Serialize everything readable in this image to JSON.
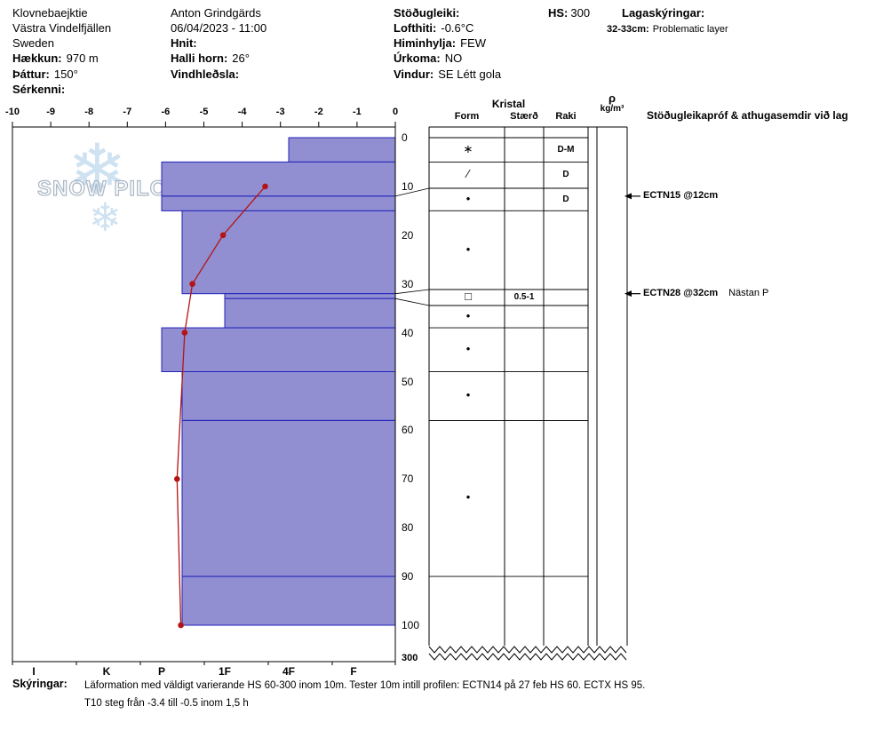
{
  "colors": {
    "layer_fill": "#918fd2",
    "layer_border": "#2222bb",
    "temp_line": "#b41414",
    "grid": "#000000"
  },
  "header": {
    "left": {
      "site_name": "Klovnebaejktie",
      "region": "Västra Vindelfjällen",
      "country": "Sweden",
      "elevation_label": "Hækkun:",
      "elevation_value": "970 m",
      "aspect_label": "Þáttur:",
      "aspect_value": "150°",
      "special_label": "Sérkenni:"
    },
    "middle": {
      "observer": "Anton Grindgärds",
      "datetime": "06/04/2023 - 11:00",
      "coords_label": "Hnit:",
      "slope_label": "Halli horn:",
      "slope_value": "26°",
      "windloading_label": "Vindhleðsla:"
    },
    "right": {
      "stability_label": "Stöðugleiki:",
      "airtemp_label": "Lofthiti:",
      "airtemp_value": "-0.6°C",
      "sky_label": "Himinhylja:",
      "sky_value": "FEW",
      "precip_label": "Úrkoma:",
      "precip_value": "NO",
      "wind_label": "Vindur:",
      "wind_value": "SE Létt gola"
    },
    "hs_label": "HS:",
    "hs_value": "300",
    "layer_notes_label": "Lagaskýringar:",
    "layer_note_depth": "32-33cm:",
    "layer_note_text": "Problematic layer"
  },
  "watermark": {
    "text": "SNOW PILOT",
    "snowflake": "❄"
  },
  "chart_data": {
    "type": "snow-profile",
    "temp_axis": {
      "unit": "°C",
      "min": -10,
      "max": 0,
      "ticks": [
        -10,
        -9,
        -8,
        -7,
        -6,
        -5,
        -4,
        -3,
        -2,
        -1,
        0
      ]
    },
    "depth_axis": {
      "unit": "cm",
      "ticks": [
        0,
        10,
        20,
        30,
        40,
        50,
        60,
        70,
        80,
        90,
        100
      ],
      "break_label": "300",
      "total_depth": 300
    },
    "hardness_axis": {
      "labels": [
        "I",
        "K",
        "P",
        "1F",
        "4F",
        "F"
      ]
    },
    "layers": [
      {
        "top_cm": 0,
        "bottom_cm": 5,
        "hardness": "4F"
      },
      {
        "top_cm": 5,
        "bottom_cm": 12,
        "hardness": "P"
      },
      {
        "top_cm": 12,
        "bottom_cm": 15,
        "hardness": "P"
      },
      {
        "top_cm": 15,
        "bottom_cm": 32,
        "hardness": "P-"
      },
      {
        "top_cm": 32,
        "bottom_cm": 33,
        "hardness": "1F"
      },
      {
        "top_cm": 33,
        "bottom_cm": 39,
        "hardness": "1F"
      },
      {
        "top_cm": 39,
        "bottom_cm": 48,
        "hardness": "P"
      },
      {
        "top_cm": 48,
        "bottom_cm": 58,
        "hardness": "P-"
      },
      {
        "top_cm": 58,
        "bottom_cm": 90,
        "hardness": "P-"
      },
      {
        "top_cm": 90,
        "bottom_cm": 100,
        "hardness": "P-"
      }
    ],
    "temperature_profile": [
      {
        "depth_cm": 10,
        "temp_c": -3.4
      },
      {
        "depth_cm": 20,
        "temp_c": -4.5
      },
      {
        "depth_cm": 30,
        "temp_c": -5.3
      },
      {
        "depth_cm": 40,
        "temp_c": -5.5
      },
      {
        "depth_cm": 70,
        "temp_c": -5.7
      },
      {
        "depth_cm": 100,
        "temp_c": -5.6
      }
    ]
  },
  "grain_table": {
    "group_header": "Kristal",
    "col_form": "Form",
    "col_size": "Stærð",
    "col_wetness": "Raki",
    "density_symbol": "ρ",
    "density_unit": "kg/m³",
    "comments_header": "Stöðugleikapróf & athugasemdir við lag",
    "rows": [
      {
        "top_cm": 0,
        "bottom_cm": 5,
        "form": "∗",
        "size": "",
        "wetness": "D-M"
      },
      {
        "top_cm": 5,
        "bottom_cm": 12,
        "form": "∕",
        "size": "",
        "wetness": "D"
      },
      {
        "top_cm": 12,
        "bottom_cm": 15,
        "form": "•",
        "size": "",
        "wetness": "D"
      },
      {
        "top_cm": 15,
        "bottom_cm": 32,
        "form": "•",
        "size": "",
        "wetness": ""
      },
      {
        "top_cm": 32,
        "bottom_cm": 33,
        "form": "□",
        "size": "0.5-1",
        "wetness": ""
      },
      {
        "top_cm": 33,
        "bottom_cm": 39,
        "form": "•",
        "size": "",
        "wetness": ""
      },
      {
        "top_cm": 39,
        "bottom_cm": 48,
        "form": "•",
        "size": "",
        "wetness": ""
      },
      {
        "top_cm": 48,
        "bottom_cm": 58,
        "form": "•",
        "size": "",
        "wetness": ""
      },
      {
        "top_cm": 58,
        "bottom_cm": 90,
        "form": "•",
        "size": "",
        "wetness": ""
      },
      {
        "top_cm": 90,
        "bottom_cm": 100,
        "form": "",
        "size": "",
        "wetness": ""
      }
    ]
  },
  "annotations": [
    {
      "depth_cm": 12,
      "test": "ECTN15 @12cm",
      "note": ""
    },
    {
      "depth_cm": 32,
      "test": "ECTN28 @32cm",
      "note": "Nästan P"
    }
  ],
  "footer": {
    "label": "Skýringar:",
    "line1": "Läformation med väldigt varierande HS 60-300 inom 10m. Tester 10m intill profilen: ECTN14 på 27 feb HS 60. ECTX HS 95.",
    "line2": "T10 steg från -3.4 till -0.5 inom 1,5 h"
  }
}
